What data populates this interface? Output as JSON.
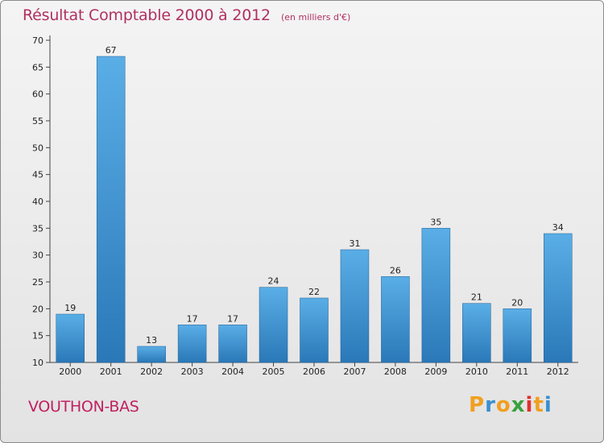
{
  "header": {
    "title": "Résultat Comptable 2000 à 2012",
    "subtitle": "(en milliers d'€)"
  },
  "footer": {
    "commune": "VOUTHON-BAS",
    "logo": "Proxiti"
  },
  "colors": {
    "bar_top": "#5aaee6",
    "bar_bottom": "#2a78b8",
    "title": "#b03060",
    "logo_letters": [
      "#f0a020",
      "#3a8fd0",
      "#f0a020",
      "#3aa040",
      "#e03030",
      "#f0a020",
      "#3a8fd0"
    ]
  },
  "chart_data": {
    "type": "bar",
    "categories": [
      "2000",
      "2001",
      "2002",
      "2003",
      "2004",
      "2005",
      "2006",
      "2007",
      "2008",
      "2009",
      "2010",
      "2011",
      "2012"
    ],
    "values": [
      19,
      67,
      13,
      17,
      17,
      24,
      22,
      31,
      26,
      35,
      21,
      20,
      34
    ],
    "title": "Résultat Comptable 2000 à 2012",
    "xlabel": "",
    "ylabel": "",
    "ylim": [
      10,
      70
    ],
    "yticks": [
      10,
      15,
      20,
      25,
      30,
      35,
      40,
      45,
      50,
      55,
      60,
      65,
      70
    ],
    "grid": false,
    "data_labels": true
  }
}
